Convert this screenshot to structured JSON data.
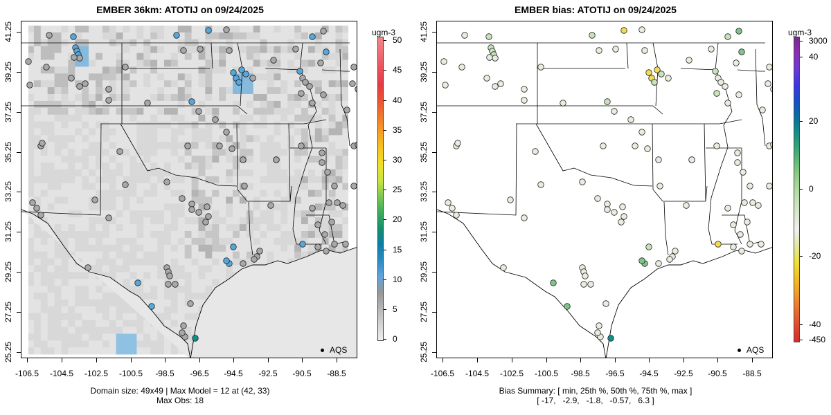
{
  "left": {
    "title": "EMBER 36km: ATOTIJ on 09/24/2025",
    "colorbar": {
      "unit": "ugm-3",
      "ticks": [
        "50",
        "45",
        "40",
        "35",
        "30",
        "25",
        "20",
        "15",
        "10",
        "5",
        "0"
      ],
      "colors": [
        "#eeeeee",
        "#d3d3d3",
        "#b5b5b5",
        "#979797",
        "#5fa4d9",
        "#2b8bc4",
        "#0b7ea6",
        "#138f6e",
        "#3bab5a",
        "#7ac853",
        "#c9e442",
        "#f0e028",
        "#f6c51f",
        "#f7a126",
        "#f07a2c",
        "#ea5533",
        "#e53a45",
        "#e8505d",
        "#ee6d73",
        "#f38688"
      ]
    },
    "footer_line1": "Domain size: 49x49 | Max Model = 12 at (42, 33)",
    "footer_line2": "Max Obs: 18"
  },
  "right": {
    "title": "EMBER bias: ATOTIJ on 09/24/2025",
    "colorbar": {
      "unit": "ugm-3",
      "ticks": [
        "3000",
        "40",
        "20",
        "0",
        "-20",
        "-40",
        "-450"
      ],
      "colors": [
        "#d72b2b",
        "#e04a2e",
        "#e8702f",
        "#ef9a2b",
        "#f3c024",
        "#efe13a",
        "#e2e8a8",
        "#f1f1f1",
        "#d9e8cc",
        "#bfe0b1",
        "#9fd491",
        "#6fc278",
        "#3aa877",
        "#168f86",
        "#0a6e9e",
        "#1550c8",
        "#3a37e0",
        "#6c38d6",
        "#8a2fb4",
        "#7a2a8e"
      ]
    },
    "footer_line1": "Bias Summary: [ min, 25th %, 50th %, 75th %, max ]",
    "footer_line2": "[ -17,   -2.9,   -1.8,   -0.57,   6.3 ]"
  },
  "axes": {
    "xticks": [
      "-106.5",
      "-104.5",
      "-102.5",
      "-100.5",
      "-98.5",
      "-96.5",
      "-94.5",
      "-92.5",
      "-90.5",
      "-88.5"
    ],
    "yticks": [
      "41.25",
      "39.25",
      "37.25",
      "35.25",
      "33.25",
      "31.25",
      "29.25",
      "27.25",
      "25.25"
    ]
  },
  "legend_label": "AQS",
  "colors": {
    "obs_gray": "#a8a8a8",
    "obs_blue": "#56a8dc",
    "obs_teal": "#0e8f8b",
    "bias_near_zero": "#e9ecdf",
    "bias_light_green": "#c8e2bb",
    "bias_green": "#7fc58a",
    "bias_yellow": "#f2dd52"
  }
}
